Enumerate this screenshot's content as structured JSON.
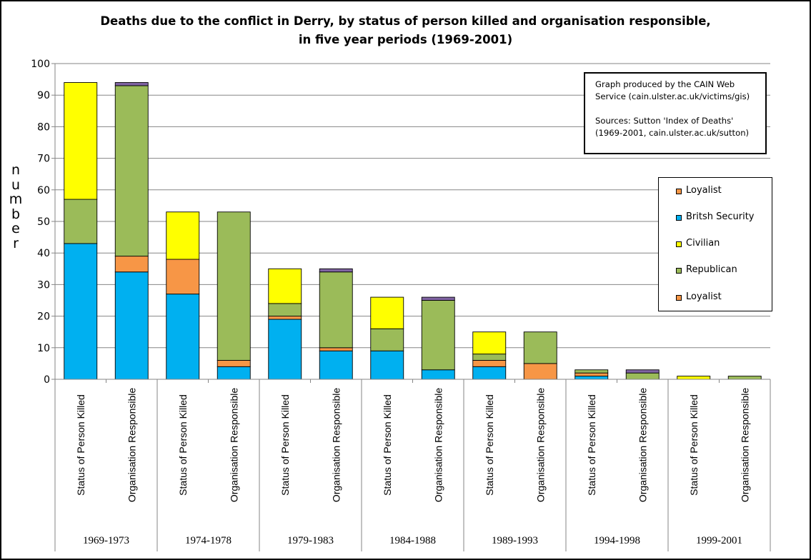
{
  "title_line1": "Deaths due to the conflict in Derry, by status of person killed and organisation responsible,",
  "title_line2": "in five year periods (1969-2001)",
  "ylabel": "number",
  "source_box": {
    "line1": "Graph produced by the CAIN Web",
    "line2": "Service (cain.ulster.ac.uk/victims/gis)",
    "line3": "Sources: Sutton 'Index of Deaths'",
    "line4": "(1969-2001,  cain.ulster.ac.uk/sutton)"
  },
  "legend": [
    {
      "label": "Loyalist",
      "color": "#F79646"
    },
    {
      "label": "Britsh Security",
      "color": "#00B0F0"
    },
    {
      "label": "Civilian",
      "color": "#FFFF00"
    },
    {
      "label": "Republican",
      "color": "#9BBB59"
    },
    {
      "label": "Loyalist",
      "color": "#F79646"
    }
  ],
  "chart_data": {
    "type": "bar",
    "stacked": true,
    "title": "Deaths due to the conflict in Derry, by status of person killed and organisation responsible, in five year periods (1969-2001)",
    "ylabel": "number",
    "ylim": [
      0,
      100
    ],
    "yticks": [
      0,
      10,
      20,
      30,
      40,
      50,
      60,
      70,
      80,
      90,
      100
    ],
    "grid": true,
    "legend_position": "right",
    "groups": [
      "1969-1973",
      "1974-1978",
      "1979-1983",
      "1984-1988",
      "1989-1993",
      "1994-1998",
      "1999-2001"
    ],
    "subcategories": [
      "Status of Person Killed",
      "Organisation Responsible"
    ],
    "categories": [
      "1969-1973 Status of Person Killed",
      "1969-1973 Organisation Responsible",
      "1974-1978 Status of Person Killed",
      "1974-1978 Organisation Responsible",
      "1979-1983 Status of Person Killed",
      "1979-1983 Organisation Responsible",
      "1984-1988 Status of Person Killed",
      "1984-1988 Organisation Responsible",
      "1989-1993 Status of Person Killed",
      "1989-1993 Organisation Responsible",
      "1994-1998 Status of Person Killed",
      "1994-1998 Organisation Responsible",
      "1999-2001 Status of Person Killed",
      "1999-2001 Organisation Responsible"
    ],
    "series": [
      {
        "key": "security",
        "color": "#00B0F0",
        "values": [
          43,
          34,
          27,
          4,
          19,
          9,
          9,
          3,
          4,
          0,
          1,
          0,
          0,
          0
        ]
      },
      {
        "key": "loyalist",
        "color": "#F79646",
        "values": [
          0,
          5,
          11,
          2,
          1,
          1,
          0,
          0,
          2,
          5,
          1,
          0,
          0,
          0
        ]
      },
      {
        "key": "republican",
        "color": "#9BBB59",
        "values": [
          14,
          54,
          0,
          47,
          4,
          24,
          7,
          22,
          2,
          10,
          1,
          2,
          0,
          1
        ]
      },
      {
        "key": "civilian",
        "color": "#FFFF00",
        "values": [
          37,
          0,
          15,
          0,
          11,
          0,
          10,
          0,
          7,
          0,
          0,
          0,
          1,
          0
        ]
      },
      {
        "key": "other",
        "color": "#8064A2",
        "values": [
          0,
          1,
          0,
          0,
          0,
          1,
          0,
          1,
          0,
          0,
          0,
          1,
          0,
          0
        ]
      }
    ]
  }
}
